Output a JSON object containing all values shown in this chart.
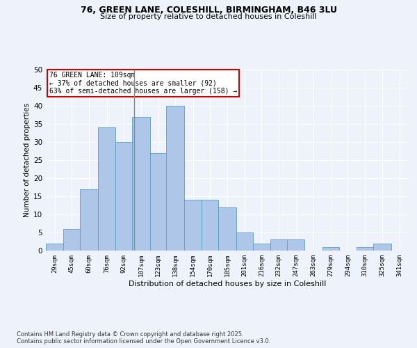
{
  "title_line1": "76, GREEN LANE, COLESHILL, BIRMINGHAM, B46 3LU",
  "title_line2": "Size of property relative to detached houses in Coleshill",
  "xlabel": "Distribution of detached houses by size in Coleshill",
  "ylabel": "Number of detached properties",
  "footer": "Contains HM Land Registry data © Crown copyright and database right 2025.\nContains public sector information licensed under the Open Government Licence v3.0.",
  "bin_labels": [
    "29sqm",
    "45sqm",
    "60sqm",
    "76sqm",
    "92sqm",
    "107sqm",
    "123sqm",
    "138sqm",
    "154sqm",
    "170sqm",
    "185sqm",
    "201sqm",
    "216sqm",
    "232sqm",
    "247sqm",
    "263sqm",
    "279sqm",
    "294sqm",
    "310sqm",
    "325sqm",
    "341sqm"
  ],
  "bin_edges": [
    29,
    45,
    60,
    76,
    92,
    107,
    123,
    138,
    154,
    170,
    185,
    201,
    216,
    232,
    247,
    263,
    279,
    294,
    310,
    325,
    341
  ],
  "bar_heights": [
    2,
    6,
    17,
    34,
    30,
    37,
    27,
    40,
    14,
    14,
    12,
    5,
    2,
    3,
    3,
    0,
    1,
    0,
    1,
    2,
    0
  ],
  "bar_color": "#aec6e8",
  "bar_edge_color": "#5a9fc8",
  "background_color": "#eef2fa",
  "grid_color": "#ffffff",
  "property_value": 109,
  "property_label": "76 GREEN LANE: 109sqm",
  "annotation_line1": "← 37% of detached houses are smaller (92)",
  "annotation_line2": "63% of semi-detached houses are larger (158) →",
  "vline_color": "#888888",
  "annotation_box_color": "#ffffff",
  "annotation_box_edge": "#cc0000",
  "ylim": [
    0,
    50
  ],
  "yticks": [
    0,
    5,
    10,
    15,
    20,
    25,
    30,
    35,
    40,
    45,
    50
  ]
}
